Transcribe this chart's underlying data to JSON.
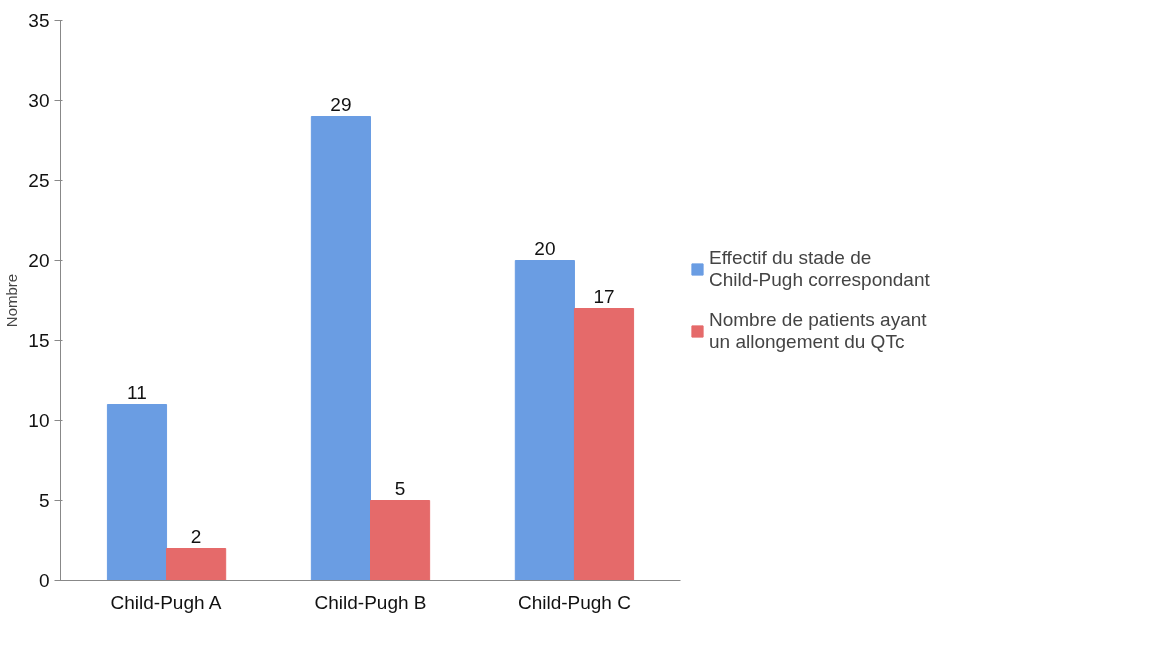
{
  "chart_data": {
    "type": "bar",
    "ylabel": "Nombre",
    "categories": [
      "Child-Pugh A",
      "Child-Pugh B",
      "Child-Pugh C"
    ],
    "series": [
      {
        "name": "Effectif du stade de Child-Pugh correspondant",
        "color": "#6a9de3",
        "values": [
          11,
          29,
          20
        ]
      },
      {
        "name": "Nombre de patients ayant un allongement du QTc",
        "color": "#e56a6a",
        "values": [
          2,
          5,
          17
        ]
      }
    ],
    "ylim": [
      0,
      35
    ],
    "yticks": [
      0,
      5,
      10,
      15,
      20,
      25,
      30,
      35
    ],
    "data_labels": true,
    "grid": false,
    "legend": "right"
  }
}
